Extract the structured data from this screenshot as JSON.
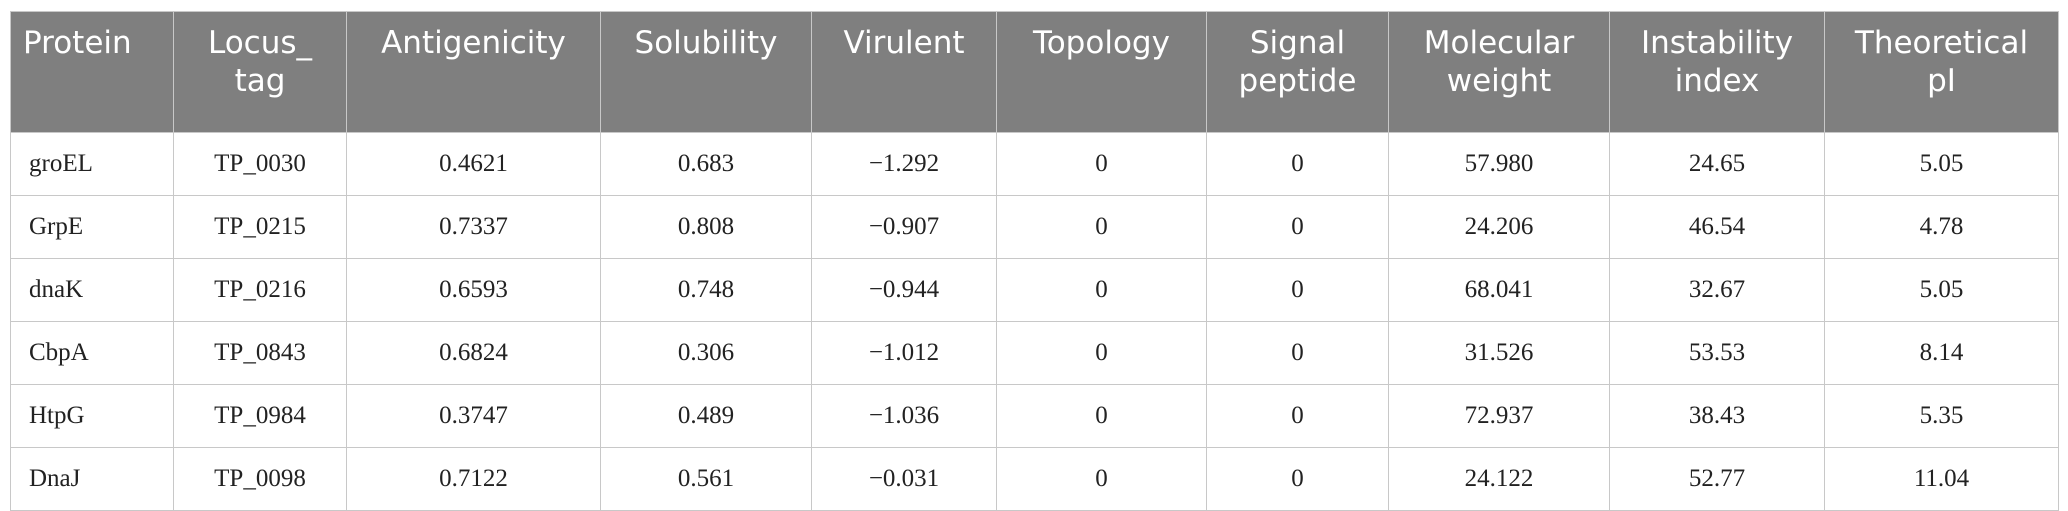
{
  "table": {
    "header": [
      "Protein",
      "Locus_\ntag",
      "Antigenicity",
      "Solubility",
      "Virulent",
      "Topology",
      "Signal\npeptide",
      "Molecular\nweight",
      "Instability\nindex",
      "Theoretical\npI"
    ],
    "rows": [
      [
        "groEL",
        "TP_0030",
        "0.4621",
        "0.683",
        "−1.292",
        "0",
        "0",
        "57.980",
        "24.65",
        "5.05"
      ],
      [
        "GrpE",
        "TP_0215",
        "0.7337",
        "0.808",
        "−0.907",
        "0",
        "0",
        "24.206",
        "46.54",
        "4.78"
      ],
      [
        "dnaK",
        "TP_0216",
        "0.6593",
        "0.748",
        "−0.944",
        "0",
        "0",
        "68.041",
        "32.67",
        "5.05"
      ],
      [
        "CbpA",
        "TP_0843",
        "0.6824",
        "0.306",
        "−1.012",
        "0",
        "0",
        "31.526",
        "53.53",
        "8.14"
      ],
      [
        "HtpG",
        "TP_0984",
        "0.3747",
        "0.489",
        "−1.036",
        "0",
        "0",
        "72.937",
        "38.43",
        "5.35"
      ],
      [
        "DnaJ",
        "TP_0098",
        "0.7122",
        "0.561",
        "−0.031",
        "0",
        "0",
        "24.122",
        "52.77",
        "11.04"
      ]
    ]
  }
}
